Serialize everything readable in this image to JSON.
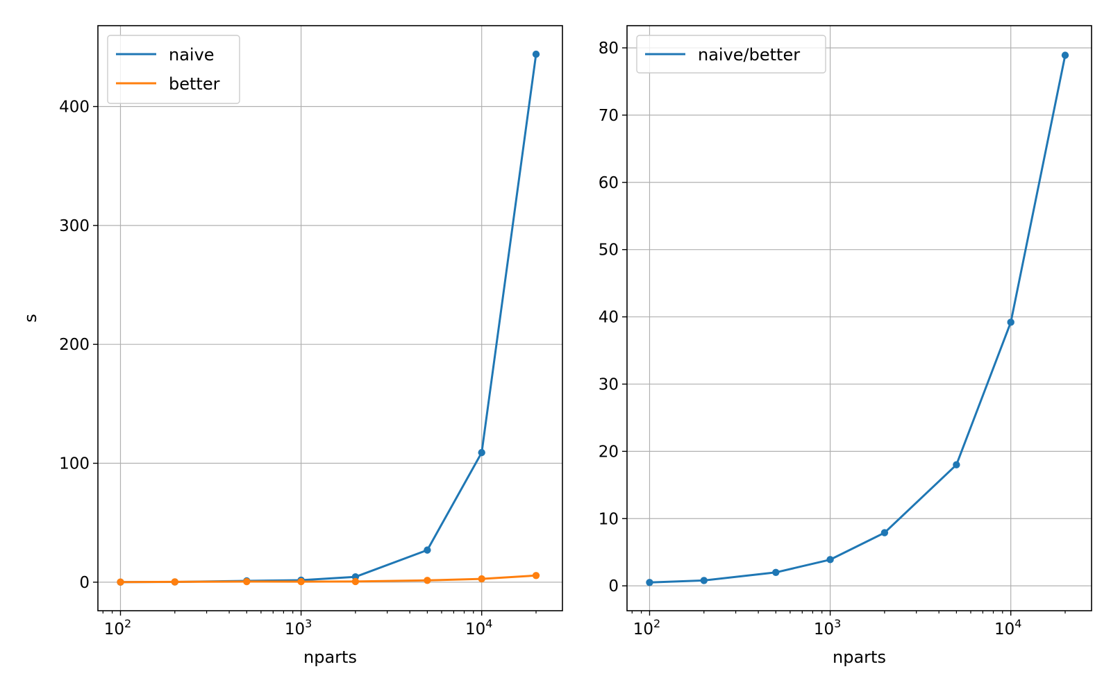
{
  "chart_data": [
    {
      "type": "line",
      "title": "",
      "xlabel": "nparts",
      "ylabel": "s",
      "xscale": "log",
      "xlim": [
        75,
        28000
      ],
      "ylim": [
        -24,
        468
      ],
      "grid": true,
      "legend": "top-left",
      "x": [
        100,
        200,
        500,
        1000,
        2000,
        5000,
        10000,
        20000
      ],
      "xticks": [
        100,
        1000,
        10000
      ],
      "xtick_labels": [
        {
          "base": "10",
          "exp": "2"
        },
        {
          "base": "10",
          "exp": "3"
        },
        {
          "base": "10",
          "exp": "4"
        }
      ],
      "yticks": [
        0,
        100,
        200,
        300,
        400
      ],
      "ytick_labels": [
        "0",
        "100",
        "200",
        "300",
        "400"
      ],
      "series": [
        {
          "name": "naive",
          "color": "#1f77b4",
          "values": [
            0.05,
            0.2,
            1.1,
            1.7,
            4.5,
            27,
            109,
            444
          ]
        },
        {
          "name": "better",
          "color": "#ff7f0e",
          "values": [
            0.1,
            0.25,
            0.5,
            0.45,
            0.55,
            1.5,
            2.8,
            5.6
          ]
        }
      ]
    },
    {
      "type": "line",
      "title": "",
      "xlabel": "nparts",
      "ylabel": "",
      "xscale": "log",
      "xlim": [
        75,
        28000
      ],
      "ylim": [
        -3.7,
        83.3
      ],
      "grid": true,
      "legend": "top-left",
      "x": [
        100,
        200,
        500,
        1000,
        2000,
        5000,
        10000,
        20000
      ],
      "xticks": [
        100,
        1000,
        10000
      ],
      "xtick_labels": [
        {
          "base": "10",
          "exp": "2"
        },
        {
          "base": "10",
          "exp": "3"
        },
        {
          "base": "10",
          "exp": "4"
        }
      ],
      "yticks": [
        0,
        10,
        20,
        30,
        40,
        50,
        60,
        70,
        80
      ],
      "ytick_labels": [
        "0",
        "10",
        "20",
        "30",
        "40",
        "50",
        "60",
        "70",
        "80"
      ],
      "series": [
        {
          "name": "naive/better",
          "color": "#1f77b4",
          "values": [
            0.5,
            0.8,
            2.0,
            3.9,
            7.9,
            18.0,
            39.2,
            78.9
          ]
        }
      ]
    }
  ]
}
